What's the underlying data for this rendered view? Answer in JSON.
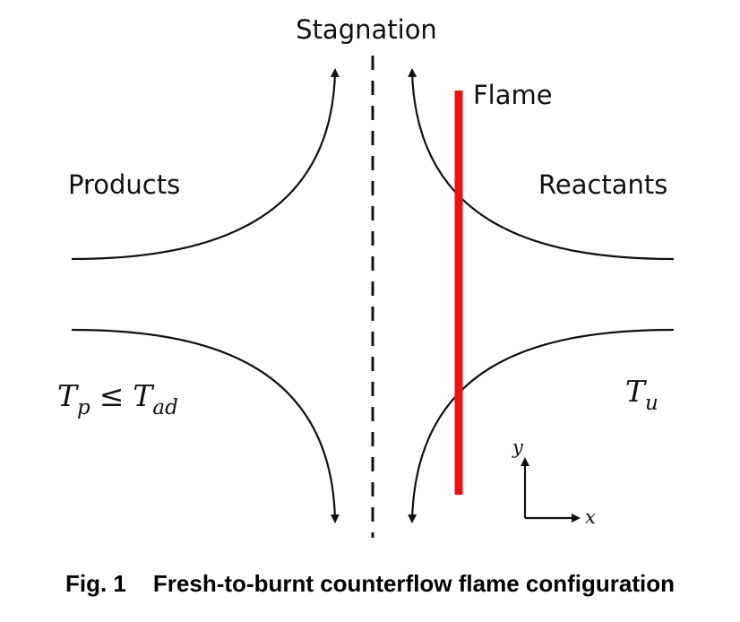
{
  "labels": {
    "stagnation": "Stagnation",
    "flame": "Flame",
    "products": "Products",
    "reactants": "Reactants"
  },
  "math": {
    "tp_T": "T",
    "tp_sub": "p",
    "leq": "≤",
    "tad_T": "T",
    "tad_sub": "ad",
    "tu_T": "T",
    "tu_sub": "u",
    "axis_y": "y",
    "axis_x": "x"
  },
  "caption": {
    "number": "Fig. 1",
    "text": "Fresh-to-burnt counterflow flame configuration"
  },
  "colors": {
    "flame": "#ee1111",
    "streamline": "#111111"
  }
}
